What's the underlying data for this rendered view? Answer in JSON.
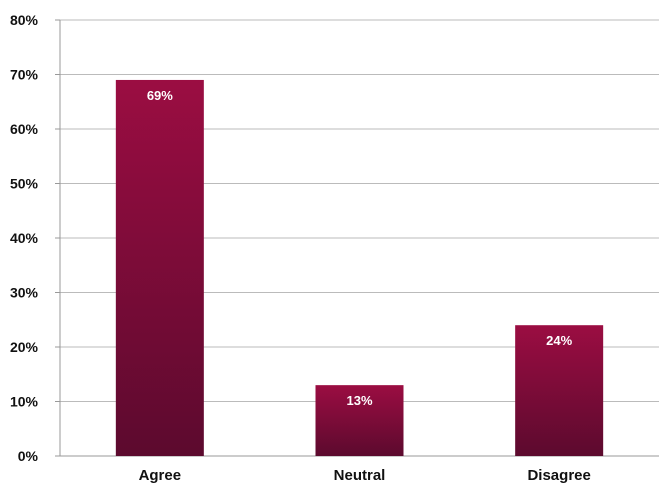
{
  "chart_data": {
    "type": "bar",
    "title": "",
    "xlabel": "",
    "ylabel": "",
    "categories": [
      "Agree",
      "Neutral",
      "Disagree"
    ],
    "values": [
      69,
      13,
      24
    ],
    "data_labels": [
      "69%",
      "13%",
      "24%"
    ],
    "ylim": [
      0,
      80
    ],
    "yticks": [
      0,
      10,
      20,
      30,
      40,
      50,
      60,
      70,
      80
    ],
    "ytick_labels": [
      "0%",
      "10%",
      "20%",
      "30%",
      "40%",
      "50%",
      "60%",
      "70%",
      "80%"
    ],
    "grid": true,
    "legend": "none",
    "colors": {
      "bar_top": "#9b0d42",
      "bar_bottom": "#5c0a2e",
      "grid": "#bbbbbb",
      "axis": "#999999",
      "text": "#111111",
      "data_label": "#ffffff"
    }
  }
}
